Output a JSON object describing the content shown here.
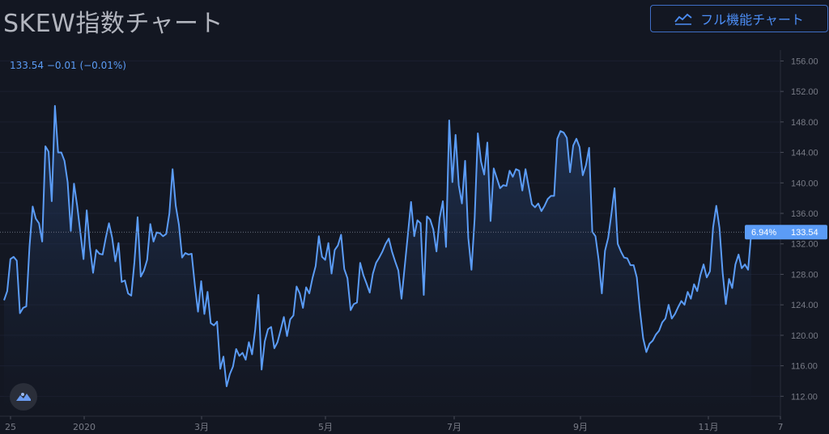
{
  "header": {
    "title": "SKEW指数チャート",
    "full_chart_label": "フル機能チャート"
  },
  "readout": {
    "price": "133.54",
    "change": "−0.01",
    "change_pct": "(−0.01%)"
  },
  "last_price_tag": {
    "pct": "6.94%",
    "price": "133.54"
  },
  "colors": {
    "background": "#131722",
    "line": "#5b9cf6",
    "accent": "#4c8df5",
    "grid": "#1f2330",
    "axis_text": "#787b86"
  },
  "icons": {
    "chart_icon": "line-chart-icon",
    "logo": "tradingview-logo-icon"
  },
  "chart_data": {
    "type": "area",
    "title": "",
    "xlabel": "",
    "ylabel": "",
    "ylim": [
      110,
      157
    ],
    "y_ticks": [
      112,
      116,
      120,
      124,
      128,
      132,
      136,
      140,
      144,
      148,
      152,
      156
    ],
    "y_tick_labels": [
      "112.00",
      "116.00",
      "120.00",
      "124.00",
      "128.00",
      "132.00",
      "136.00",
      "140.00",
      "144.00",
      "148.00",
      "152.00",
      "156.00"
    ],
    "x_tick_labels": [
      "25",
      "2020",
      "3月",
      "5月",
      "7月",
      "9月",
      "11月",
      "7"
    ],
    "grid": true,
    "series": [
      {
        "values": [
          124.6,
          125.8,
          130.0,
          130.3,
          129.8,
          122.9,
          123.6,
          123.8,
          131.6,
          136.9,
          135.3,
          134.7,
          132.3,
          144.8,
          144.1,
          137.6,
          150.1,
          144.0,
          144.0,
          142.9,
          140.1,
          133.7,
          139.9,
          137.0,
          133.5,
          130.0,
          136.4,
          131.6,
          128.2,
          131.2,
          130.7,
          130.6,
          132.8,
          134.7,
          132.8,
          129.7,
          132.1,
          127.0,
          127.2,
          125.5,
          125.2,
          129.6,
          135.5,
          127.7,
          128.5,
          129.9,
          134.6,
          132.3,
          133.5,
          133.4,
          133.0,
          133.3,
          136.0,
          141.8,
          137.0,
          134.5,
          130.2,
          130.8,
          130.6,
          130.7,
          126.6,
          123.1,
          127.1,
          122.8,
          125.7,
          121.6,
          121.3,
          121.8,
          115.6,
          117.2,
          113.3,
          114.9,
          115.9,
          118.2,
          117.3,
          117.7,
          116.8,
          119.1,
          117.5,
          120.8,
          125.3,
          115.5,
          119.2,
          120.8,
          121.1,
          118.3,
          119.1,
          120.7,
          122.4,
          119.9,
          122.1,
          122.6,
          126.4,
          125.5,
          123.6,
          126.3,
          125.5,
          127.5,
          129.1,
          133.0,
          130.3,
          129.9,
          132.1,
          128.1,
          131.2,
          131.8,
          133.2,
          128.7,
          127.5,
          123.3,
          124.1,
          124.3,
          129.5,
          127.9,
          126.8,
          125.6,
          128.1,
          129.5,
          130.2,
          131.0,
          132.0,
          132.7,
          131.0,
          129.7,
          128.5,
          124.8,
          129.0,
          133.2,
          137.5,
          133.0,
          135.1,
          134.7,
          125.3,
          135.6,
          135.2,
          133.9,
          131.0,
          135.4,
          137.6,
          131.6,
          148.2,
          140.1,
          146.3,
          139.7,
          137.3,
          142.9,
          132.8,
          128.6,
          135.3,
          146.5,
          142.8,
          141.1,
          145.3,
          135.0,
          141.9,
          140.6,
          139.3,
          139.7,
          139.6,
          141.6,
          140.8,
          141.8,
          141.6,
          139.0,
          141.8,
          139.5,
          137.2,
          136.8,
          137.3,
          136.3,
          137.0,
          137.9,
          138.3,
          138.3,
          145.8,
          146.8,
          146.6,
          145.9,
          141.4,
          144.9,
          145.8,
          144.7,
          141.0,
          142.3,
          144.6,
          133.6,
          133.0,
          129.9,
          125.5,
          131.1,
          132.8,
          135.9,
          139.3,
          132.0,
          131.0,
          130.2,
          130.1,
          129.2,
          129.2,
          127.6,
          123.2,
          119.6,
          117.8,
          118.9,
          119.3,
          120.1,
          120.6,
          121.7,
          122.2,
          124.0,
          122.2,
          122.8,
          123.7,
          124.5,
          124.0,
          125.7,
          124.8,
          126.7,
          125.8,
          127.9,
          129.3,
          127.6,
          128.4,
          134.2,
          137.0,
          134.1,
          128.2,
          124.1,
          127.4,
          126.2,
          129.3,
          130.6,
          128.8,
          129.3,
          128.6,
          133.5
        ]
      }
    ]
  }
}
